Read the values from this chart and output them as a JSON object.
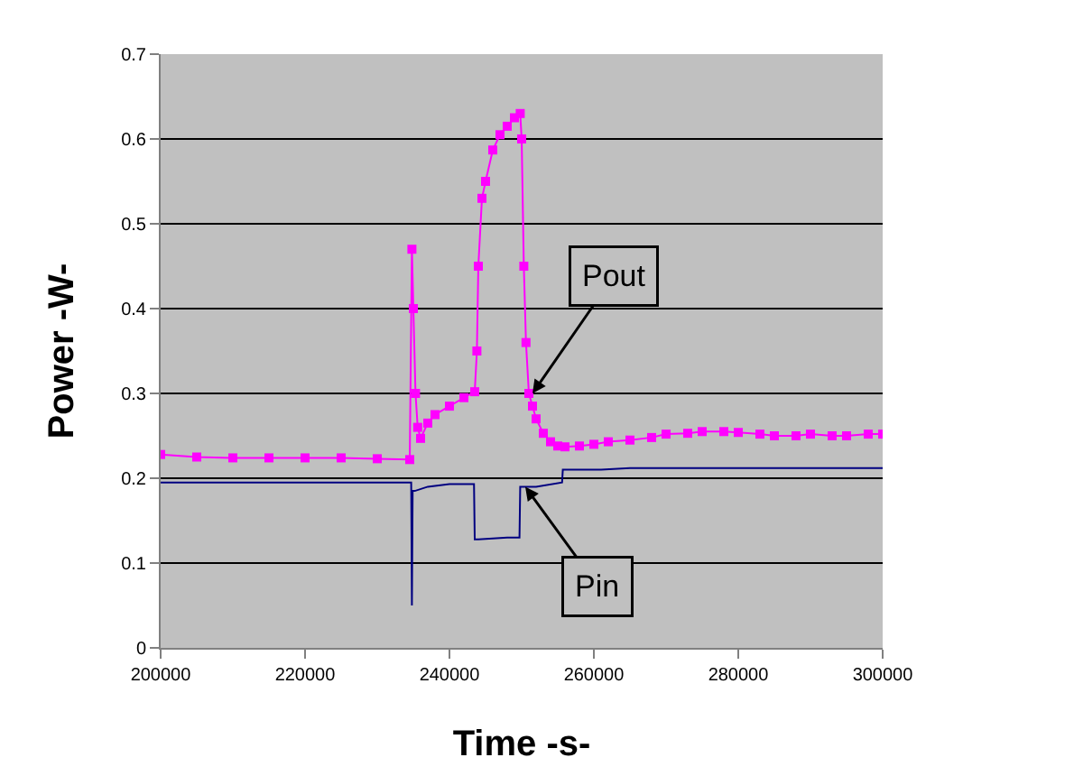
{
  "chart_data": {
    "type": "line",
    "xlabel": "Time -s-",
    "ylabel": "Power -W-",
    "xlim": [
      200000,
      300000
    ],
    "xticks": [
      200000,
      220000,
      240000,
      260000,
      280000,
      300000
    ],
    "ylim": [
      0,
      0.7
    ],
    "yticks": [
      0,
      0.1,
      0.2,
      0.3,
      0.4,
      0.5,
      0.6,
      0.7
    ],
    "grid": "y",
    "series": [
      {
        "color": "#ff00ff",
        "marker": "square",
        "x": [
          200000,
          205000,
          210000,
          215000,
          220000,
          225000,
          230000,
          234500,
          234800,
          235000,
          235300,
          235600,
          236000,
          237000,
          238000,
          240000,
          242000,
          243500,
          243800,
          244000,
          244500,
          245000,
          246000,
          247000,
          248000,
          249000,
          249800,
          250000,
          250300,
          250600,
          251000,
          251500,
          252000,
          253000,
          254000,
          255000,
          256000,
          258000,
          260000,
          262000,
          265000,
          268000,
          270000,
          273000,
          275000,
          278000,
          280000,
          283000,
          285000,
          288000,
          290000,
          293000,
          295000,
          298000,
          300000
        ],
        "values": [
          0.228,
          0.225,
          0.224,
          0.224,
          0.224,
          0.224,
          0.223,
          0.222,
          0.47,
          0.4,
          0.3,
          0.26,
          0.247,
          0.265,
          0.275,
          0.285,
          0.295,
          0.302,
          0.35,
          0.45,
          0.53,
          0.55,
          0.587,
          0.605,
          0.615,
          0.625,
          0.63,
          0.6,
          0.45,
          0.36,
          0.3,
          0.285,
          0.27,
          0.253,
          0.243,
          0.238,
          0.237,
          0.238,
          0.24,
          0.243,
          0.245,
          0.248,
          0.252,
          0.253,
          0.255,
          0.255,
          0.254,
          0.252,
          0.25,
          0.25,
          0.252,
          0.25,
          0.25,
          0.252,
          0.252
        ]
      },
      {
        "color": "#000080",
        "marker": "none",
        "x": [
          200000,
          210000,
          220000,
          230000,
          234700,
          234800,
          234900,
          235200,
          237000,
          240000,
          243400,
          243500,
          244000,
          248000,
          249700,
          249800,
          252000,
          255600,
          255700,
          258000,
          261000,
          265000,
          270000,
          280000,
          290000,
          300000
        ],
        "values": [
          0.195,
          0.195,
          0.195,
          0.195,
          0.195,
          0.05,
          0.185,
          0.185,
          0.19,
          0.193,
          0.193,
          0.128,
          0.128,
          0.13,
          0.13,
          0.19,
          0.19,
          0.195,
          0.21,
          0.21,
          0.21,
          0.212,
          0.212,
          0.212,
          0.212,
          0.212
        ]
      }
    ],
    "annotations": [
      {
        "text": "Pout",
        "x": 251500,
        "y": 0.3
      },
      {
        "text": "Pin",
        "x": 250500,
        "y": 0.19
      }
    ]
  }
}
